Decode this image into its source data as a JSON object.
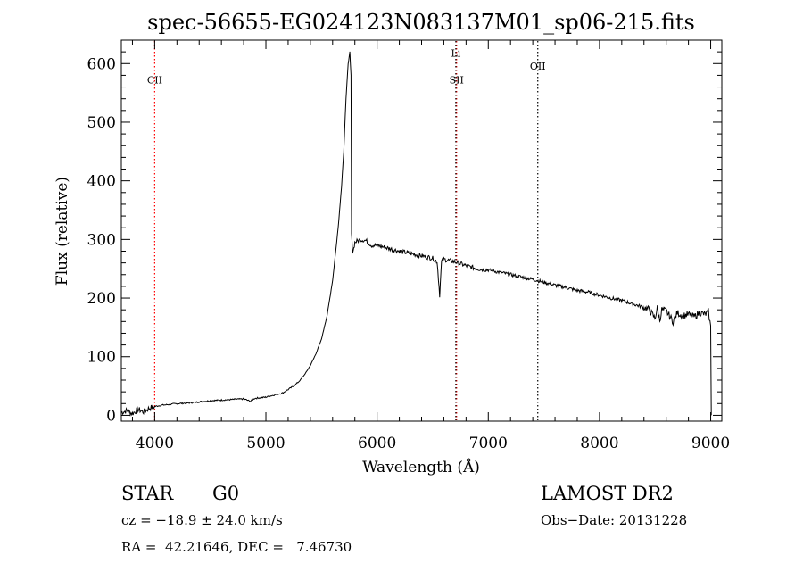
{
  "chart_data": {
    "type": "line",
    "title": "spec-56655-EG024123N083137M01_sp06-215.fits",
    "xlabel": "Wavelength (Å)",
    "ylabel": "Flux (relative)",
    "xlim": [
      3700,
      9100
    ],
    "ylim": [
      -10,
      640
    ],
    "xticks": [
      4000,
      5000,
      6000,
      7000,
      8000,
      9000
    ],
    "yticks": [
      0,
      100,
      200,
      300,
      400,
      500,
      600
    ],
    "grid": false,
    "series": [
      {
        "x": [
          3700,
          3750,
          3800,
          3850,
          3900,
          3950,
          4000,
          4050,
          4100,
          4200,
          4300,
          4400,
          4500,
          4600,
          4700,
          4800,
          4860,
          4900,
          5000,
          5100,
          5150,
          5200,
          5250,
          5300,
          5350,
          5400,
          5450,
          5500,
          5550,
          5600,
          5650,
          5680,
          5700,
          5720,
          5740,
          5755,
          5765,
          5770,
          5780,
          5790,
          5800,
          5850,
          5900,
          5950,
          6000,
          6100,
          6200,
          6300,
          6400,
          6500,
          6540,
          6563,
          6580,
          6600,
          6700,
          6800,
          6900,
          7000,
          7100,
          7200,
          7300,
          7400,
          7500,
          7600,
          7700,
          7800,
          7900,
          8000,
          8100,
          8200,
          8300,
          8400,
          8450,
          8498,
          8520,
          8542,
          8560,
          8600,
          8662,
          8700,
          8750,
          8800,
          8850,
          8900,
          8950,
          8980,
          9000,
          9005
        ],
        "y": [
          5,
          8,
          3,
          10,
          6,
          12,
          15,
          17,
          18,
          20,
          21,
          23,
          25,
          26,
          27,
          28,
          24,
          29,
          31,
          36,
          38,
          44,
          50,
          58,
          70,
          85,
          105,
          130,
          170,
          230,
          320,
          390,
          450,
          540,
          600,
          620,
          580,
          310,
          280,
          285,
          295,
          300,
          298,
          290,
          290,
          285,
          280,
          276,
          272,
          268,
          262,
          205,
          262,
          266,
          262,
          255,
          250,
          248,
          244,
          240,
          236,
          232,
          227,
          222,
          218,
          213,
          210,
          205,
          200,
          196,
          190,
          184,
          180,
          165,
          183,
          162,
          180,
          178,
          160,
          175,
          170,
          172,
          168,
          175,
          172,
          176,
          150,
          0
        ]
      }
    ],
    "lines": [
      {
        "label": "CII",
        "x": 4000,
        "color": "#ff0000",
        "label_y": 566
      },
      {
        "label": "SII",
        "x": 6715,
        "color": "#ff0000",
        "label_y": 566
      },
      {
        "label": "Li",
        "x": 6708,
        "color": "#000000",
        "label_y": 612
      },
      {
        "label": "OII",
        "x": 7445,
        "color": "#000000",
        "label_y": 590
      }
    ]
  },
  "info": {
    "class": "STAR",
    "subclass": "G0",
    "survey": "LAMOST DR2",
    "cz": "cz = −18.9 ± 24.0 km/s",
    "obs_date": "Obs−Date: 20131228",
    "radec": "RA =  42.21646, DEC =   7.46730"
  }
}
